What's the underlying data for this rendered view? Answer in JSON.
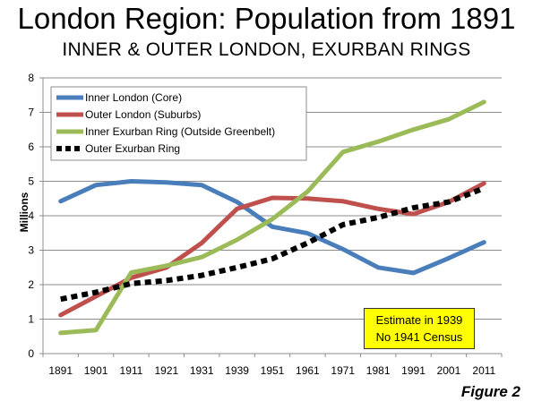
{
  "title": "London Region: Population from 1891",
  "subtitle": "INNER & OUTER LONDON, EXURBAN RINGS",
  "figure_label": "Figure 2",
  "note": {
    "line1": "Estimate in 1939",
    "line2": "No 1941 Census"
  },
  "chart_data": {
    "type": "line",
    "title": "London Region: Population from 1891",
    "subtitle": "INNER & OUTER LONDON, EXURBAN RINGS",
    "xlabel": "",
    "ylabel": "Millions",
    "ylim": [
      0,
      8
    ],
    "yticks": [
      0,
      1,
      2,
      3,
      4,
      5,
      6,
      7,
      8
    ],
    "grid": true,
    "legend_placement": "top-left",
    "categories": [
      "1891",
      "1901",
      "1911",
      "1921",
      "1931",
      "1939",
      "1951",
      "1961",
      "1971",
      "1981",
      "1991",
      "2001",
      "2011"
    ],
    "series": [
      {
        "name": "Inner London (Core)",
        "color": "#4a7ebb",
        "dash": "solid",
        "values": [
          4.42,
          4.89,
          5.0,
          4.97,
          4.89,
          4.4,
          3.68,
          3.49,
          3.03,
          2.5,
          2.34,
          2.77,
          3.23
        ]
      },
      {
        "name": "Outer London (Suburbs)",
        "color": "#c0504d",
        "dash": "solid",
        "values": [
          1.12,
          1.66,
          2.2,
          2.5,
          3.21,
          4.2,
          4.52,
          4.5,
          4.42,
          4.2,
          4.05,
          4.4,
          4.94
        ]
      },
      {
        "name": "Inner Exurban Ring (Outside Greenbelt)",
        "color": "#9bbb59",
        "dash": "solid",
        "values": [
          0.6,
          0.68,
          2.35,
          2.55,
          2.8,
          3.3,
          3.9,
          4.7,
          5.85,
          6.15,
          6.5,
          6.8,
          7.3
        ]
      },
      {
        "name": "Outer Exurban Ring",
        "color": "#000000",
        "dash": "dotted",
        "values": [
          1.58,
          1.78,
          2.03,
          2.12,
          2.27,
          2.5,
          2.75,
          3.21,
          3.74,
          3.95,
          4.23,
          4.4,
          4.8
        ]
      }
    ]
  }
}
